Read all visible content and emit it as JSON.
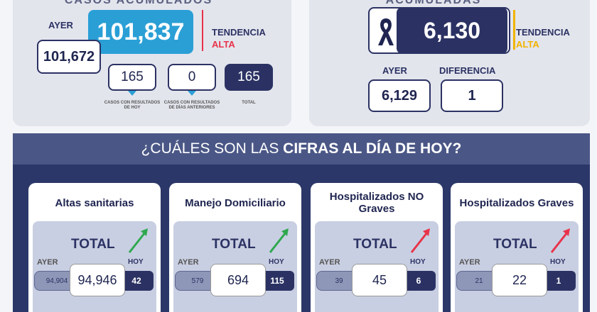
{
  "casos": {
    "title": "CASOS ACUMULADOS",
    "ayer_label": "AYER",
    "total": "101,837",
    "ayer": "101,672",
    "tendencia_label": "TENDENCIA",
    "tendencia": "ALTA",
    "boxes": [
      {
        "value": "165",
        "label": "CASOS CON RESULTADOS DE HOY"
      },
      {
        "value": "0",
        "label": "CASOS CON RESULTADOS DE DÍAS ANTERIORES"
      },
      {
        "value": "165",
        "label": "TOTAL"
      }
    ]
  },
  "defunciones": {
    "title": "ACUMULADAS",
    "total": "6,130",
    "tendencia_label": "TENDENCIA",
    "tendencia": "ALTA",
    "ayer_label": "AYER",
    "ayer": "6,129",
    "diferencia_label": "DIFERENCIA",
    "diferencia": "1"
  },
  "hoy": {
    "title_start": "¿CUÁLES SON LAS ",
    "title_bold": "CIFRAS AL DÍA DE HOY?",
    "cards": [
      {
        "title": "Altas sanitarias",
        "total_label": "TOTAL",
        "ayer_label": "AYER",
        "ayer": "94,904",
        "total": "94,946",
        "hoy_label": "HOY",
        "hoy": "42",
        "trend_color": "#2fa84f"
      },
      {
        "title": "Manejo Domiciliario",
        "total_label": "TOTAL",
        "ayer_label": "AYER",
        "ayer": "579",
        "total": "694",
        "hoy_label": "HOY",
        "hoy": "115",
        "trend_color": "#2fa84f"
      },
      {
        "title": "Hospitalizados NO Graves",
        "total_label": "TOTAL",
        "ayer_label": "AYER",
        "ayer": "39",
        "total": "45",
        "hoy_label": "HOY",
        "hoy": "6",
        "trend_color": "#e8334a"
      },
      {
        "title": "Hospitalizados Graves",
        "total_label": "TOTAL",
        "ayer_label": "AYER",
        "ayer": "21",
        "total": "22",
        "hoy_label": "HOY",
        "hoy": "1",
        "trend_color": "#e8334a"
      }
    ]
  }
}
